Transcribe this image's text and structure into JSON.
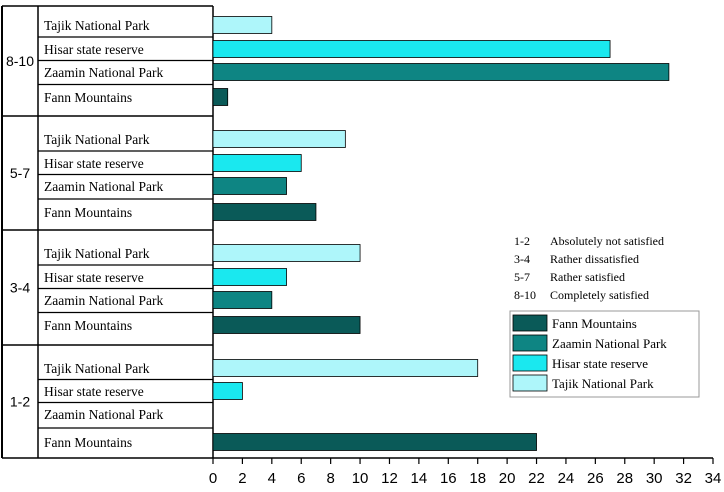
{
  "chart_data": {
    "type": "bar",
    "orientation": "horizontal",
    "groups": [
      "8-10",
      "5-7",
      "3-4",
      "1-2"
    ],
    "group_rows": [
      {
        "group": "8-10",
        "rows": [
          {
            "label": "Tajik National Park",
            "series": "Tajik National Park",
            "value": 4
          },
          {
            "label": "Hisar state reserve",
            "series": "Hisar state reserve",
            "value": 27
          },
          {
            "label": "Zaamin National Park",
            "series": "Zaamin National Park",
            "value": 31
          },
          {
            "label": "Fann Mountains",
            "series": "Fann Mountains",
            "value": 1
          }
        ]
      },
      {
        "group": "5-7",
        "rows": [
          {
            "label": "Tajik National Park",
            "series": "Tajik National Park",
            "value": 9
          },
          {
            "label": "Hisar state reserve",
            "series": "Hisar state reserve",
            "value": 6
          },
          {
            "label": "Zaamin National Park",
            "series": "Zaamin National Park",
            "value": 5
          },
          {
            "label": "Fann Mountains",
            "series": "Fann Mountains",
            "value": 7
          }
        ]
      },
      {
        "group": "3-4",
        "rows": [
          {
            "label": "Tajik National Park",
            "series": "Tajik National Park",
            "value": 10
          },
          {
            "label": "Hisar state reserve",
            "series": "Hisar state reserve",
            "value": 5
          },
          {
            "label": "Zaamin National Park",
            "series": "Zaamin National Park",
            "value": 4
          },
          {
            "label": "Fann Mountains",
            "series": "Fann Mountains",
            "value": 10
          }
        ]
      },
      {
        "group": "1-2",
        "rows": [
          {
            "label": "Tajik National Park",
            "series": "Tajik National Park",
            "value": 18
          },
          {
            "label": "Hisar state reserve",
            "series": "Hisar state reserve",
            "value": 2
          },
          {
            "label": "Zaamin National Park",
            "series": "Zaamin National Park",
            "value": 0
          },
          {
            "label": "Fann Mountains",
            "series": "Fann Mountains",
            "value": 22
          }
        ]
      }
    ],
    "series": [
      {
        "name": "Fann Mountains",
        "color": "#0a5a58"
      },
      {
        "name": "Zaamin National Park",
        "color": "#0e8583"
      },
      {
        "name": "Hisar state reserve",
        "color": "#1ae8ef"
      },
      {
        "name": "Tajik National Park",
        "color": "#aef6fa"
      }
    ],
    "xlim": [
      0,
      34
    ],
    "xticks": [
      0,
      2,
      4,
      6,
      8,
      10,
      12,
      14,
      16,
      18,
      20,
      22,
      24,
      26,
      28,
      30,
      32,
      34
    ],
    "legend_position": "right-middle",
    "scale_notes": [
      {
        "code": "1-2",
        "meaning": "Absolutely not satisfied"
      },
      {
        "code": "3-4",
        "meaning": "Rather dissatisfied"
      },
      {
        "code": "5-7",
        "meaning": "Rather satisfied"
      },
      {
        "code": "8-10",
        "meaning": "Completely satisfied"
      }
    ],
    "grid": false
  }
}
